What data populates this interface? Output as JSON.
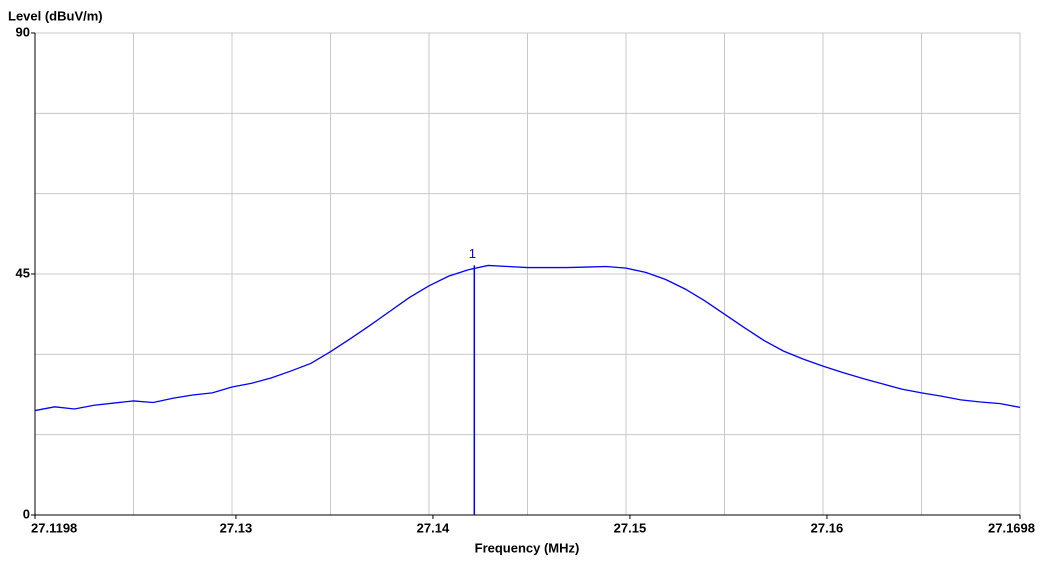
{
  "chart_data": {
    "type": "line",
    "y_axis_label": "Level (dBuV/m)",
    "x_axis_label": "Frequency (MHz)",
    "xlim": [
      27.1198,
      27.1698
    ],
    "xticks": [
      27.1198,
      27.13,
      27.14,
      27.15,
      27.16,
      27.1698
    ],
    "xgrid": [
      27.1198,
      27.1248,
      27.1298,
      27.1348,
      27.1398,
      27.1448,
      27.1498,
      27.1548,
      27.1598,
      27.1648,
      27.1698
    ],
    "ylim": [
      0,
      90
    ],
    "yticks": [
      0,
      45,
      90
    ],
    "ygrid": [
      0,
      15,
      30,
      45,
      60,
      75,
      90
    ],
    "grid": true,
    "series": [
      {
        "color": "#0000ff",
        "x": [
          27.1198,
          27.1208,
          27.1218,
          27.1228,
          27.1238,
          27.1248,
          27.1258,
          27.1268,
          27.1278,
          27.1288,
          27.1298,
          27.1308,
          27.1318,
          27.1328,
          27.1338,
          27.1348,
          27.1358,
          27.1368,
          27.1378,
          27.1388,
          27.1398,
          27.1408,
          27.1418,
          27.1428,
          27.1438,
          27.1448,
          27.1458,
          27.1468,
          27.1478,
          27.1488,
          27.1498,
          27.1508,
          27.1518,
          27.1528,
          27.1538,
          27.1548,
          27.1558,
          27.1568,
          27.1578,
          27.1588,
          27.1598,
          27.1608,
          27.1618,
          27.1628,
          27.1638,
          27.1648,
          27.1658,
          27.1668,
          27.1678,
          27.1688,
          27.1698
        ],
        "values": [
          19.5,
          20.2,
          19.8,
          20.5,
          20.9,
          21.3,
          21.0,
          21.8,
          22.4,
          22.8,
          23.9,
          24.6,
          25.6,
          26.9,
          28.3,
          30.5,
          32.9,
          35.4,
          38.0,
          40.6,
          42.8,
          44.6,
          45.8,
          46.6,
          46.4,
          46.2,
          46.2,
          46.2,
          46.3,
          46.4,
          46.1,
          45.3,
          44.0,
          42.2,
          40.0,
          37.5,
          35.0,
          32.6,
          30.6,
          29.1,
          27.8,
          26.6,
          25.5,
          24.5,
          23.5,
          22.8,
          22.2,
          21.5,
          21.1,
          20.8,
          20.1
        ]
      }
    ],
    "marker": {
      "label": "1",
      "x": 27.1421,
      "y": 46.6,
      "color": "#0000ff"
    }
  }
}
